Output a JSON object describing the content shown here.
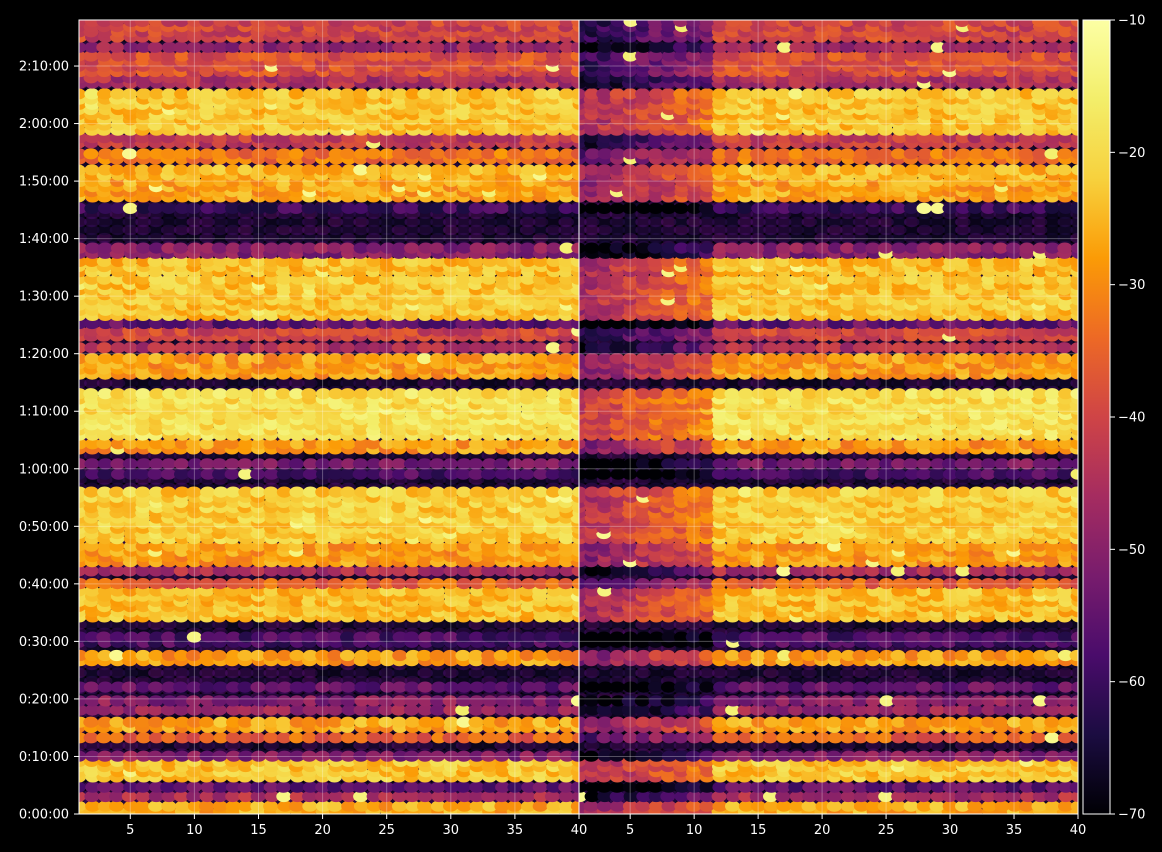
{
  "chart_data": {
    "type": "heatmap",
    "title": "",
    "xlabel": "",
    "ylabel": "",
    "background": "#000000",
    "grid": true,
    "colormap": "inferno",
    "panels": [
      {
        "xlim": [
          1,
          40
        ],
        "x_ticks": [
          "5",
          "10",
          "15",
          "20",
          "25",
          "30",
          "35",
          "40"
        ],
        "tick_values": [
          5,
          10,
          15,
          20,
          25,
          30,
          35,
          40
        ]
      },
      {
        "xlim": [
          1,
          40
        ],
        "x_ticks": [
          "5",
          "10",
          "15",
          "20",
          "25",
          "30",
          "35",
          "40"
        ],
        "tick_values": [
          5,
          10,
          15,
          20,
          25,
          30,
          35,
          40
        ]
      }
    ],
    "y_axis": {
      "ylim_minutes": [
        0,
        138
      ],
      "ticks": [
        {
          "minutes": 0,
          "label": "0:00:00"
        },
        {
          "minutes": 10,
          "label": "0:10:00"
        },
        {
          "minutes": 20,
          "label": "0:20:00"
        },
        {
          "minutes": 30,
          "label": "0:30:00"
        },
        {
          "minutes": 40,
          "label": "0:40:00"
        },
        {
          "minutes": 50,
          "label": "0:50:00"
        },
        {
          "minutes": 60,
          "label": "1:00:00"
        },
        {
          "minutes": 70,
          "label": "1:10:00"
        },
        {
          "minutes": 80,
          "label": "1:20:00"
        },
        {
          "minutes": 90,
          "label": "1:30:00"
        },
        {
          "minutes": 100,
          "label": "1:40:00"
        },
        {
          "minutes": 110,
          "label": "1:50:00"
        },
        {
          "minutes": 120,
          "label": "2:00:00"
        },
        {
          "minutes": 130,
          "label": "2:10:00"
        }
      ]
    },
    "colorbar": {
      "vmin": -70,
      "vmax": -10,
      "ticks": [
        {
          "value": -10,
          "label": "−10"
        },
        {
          "value": -20,
          "label": "−20"
        },
        {
          "value": -30,
          "label": "−30"
        },
        {
          "value": -40,
          "label": "−40"
        },
        {
          "value": -50,
          "label": "−50"
        },
        {
          "value": -60,
          "label": "−60"
        },
        {
          "value": -70,
          "label": "−70"
        }
      ]
    },
    "bands_minutes": [
      {
        "start": 0,
        "end": 2.2,
        "level": -26
      },
      {
        "start": 2.6,
        "end": 3.6,
        "level": -45
      },
      {
        "start": 4.2,
        "end": 5.2,
        "level": -55
      },
      {
        "start": 6.0,
        "end": 9.2,
        "level": -23
      },
      {
        "start": 9.6,
        "end": 10.4,
        "level": -50
      },
      {
        "start": 12.8,
        "end": 14.0,
        "level": -35
      },
      {
        "start": 14.6,
        "end": 16.6,
        "level": -27
      },
      {
        "start": 17.6,
        "end": 18.6,
        "level": -48
      },
      {
        "start": 19.2,
        "end": 20.2,
        "level": -50
      },
      {
        "start": 21.6,
        "end": 22.4,
        "level": -55
      },
      {
        "start": 26.2,
        "end": 28.4,
        "level": -28
      },
      {
        "start": 29.4,
        "end": 31.2,
        "level": -58
      },
      {
        "start": 33.8,
        "end": 39.2,
        "level": -24
      },
      {
        "start": 39.6,
        "end": 40.6,
        "level": -35
      },
      {
        "start": 41.8,
        "end": 42.6,
        "level": -45
      },
      {
        "start": 43.4,
        "end": 46.6,
        "level": -28
      },
      {
        "start": 47.4,
        "end": 56.2,
        "level": -22
      },
      {
        "start": 58.6,
        "end": 59.6,
        "level": -58
      },
      {
        "start": 60.4,
        "end": 61.4,
        "level": -52
      },
      {
        "start": 63.0,
        "end": 64.8,
        "level": -28
      },
      {
        "start": 65.4,
        "end": 73.2,
        "level": -19
      },
      {
        "start": 76.0,
        "end": 80.0,
        "level": -28
      },
      {
        "start": 80.6,
        "end": 81.6,
        "level": -44
      },
      {
        "start": 82.6,
        "end": 84.0,
        "level": -40
      },
      {
        "start": 84.8,
        "end": 85.6,
        "level": -55
      },
      {
        "start": 86.2,
        "end": 93.6,
        "level": -23
      },
      {
        "start": 93.8,
        "end": 96.2,
        "level": -24
      },
      {
        "start": 97.0,
        "end": 98.4,
        "level": -50
      },
      {
        "start": 104.8,
        "end": 105.8,
        "level": -60
      },
      {
        "start": 106.8,
        "end": 110.2,
        "level": -27
      },
      {
        "start": 110.6,
        "end": 112.8,
        "level": -25
      },
      {
        "start": 113.4,
        "end": 115.0,
        "level": -33
      },
      {
        "start": 116.2,
        "end": 118.0,
        "level": -42
      },
      {
        "start": 118.4,
        "end": 125.8,
        "level": -23
      },
      {
        "start": 126.6,
        "end": 128.0,
        "level": -45
      },
      {
        "start": 128.6,
        "end": 132.2,
        "level": -38
      },
      {
        "start": 132.8,
        "end": 134.0,
        "level": -48
      },
      {
        "start": 134.6,
        "end": 138.0,
        "level": -40
      }
    ],
    "right_panel_low_columns": [
      1,
      11
    ]
  }
}
